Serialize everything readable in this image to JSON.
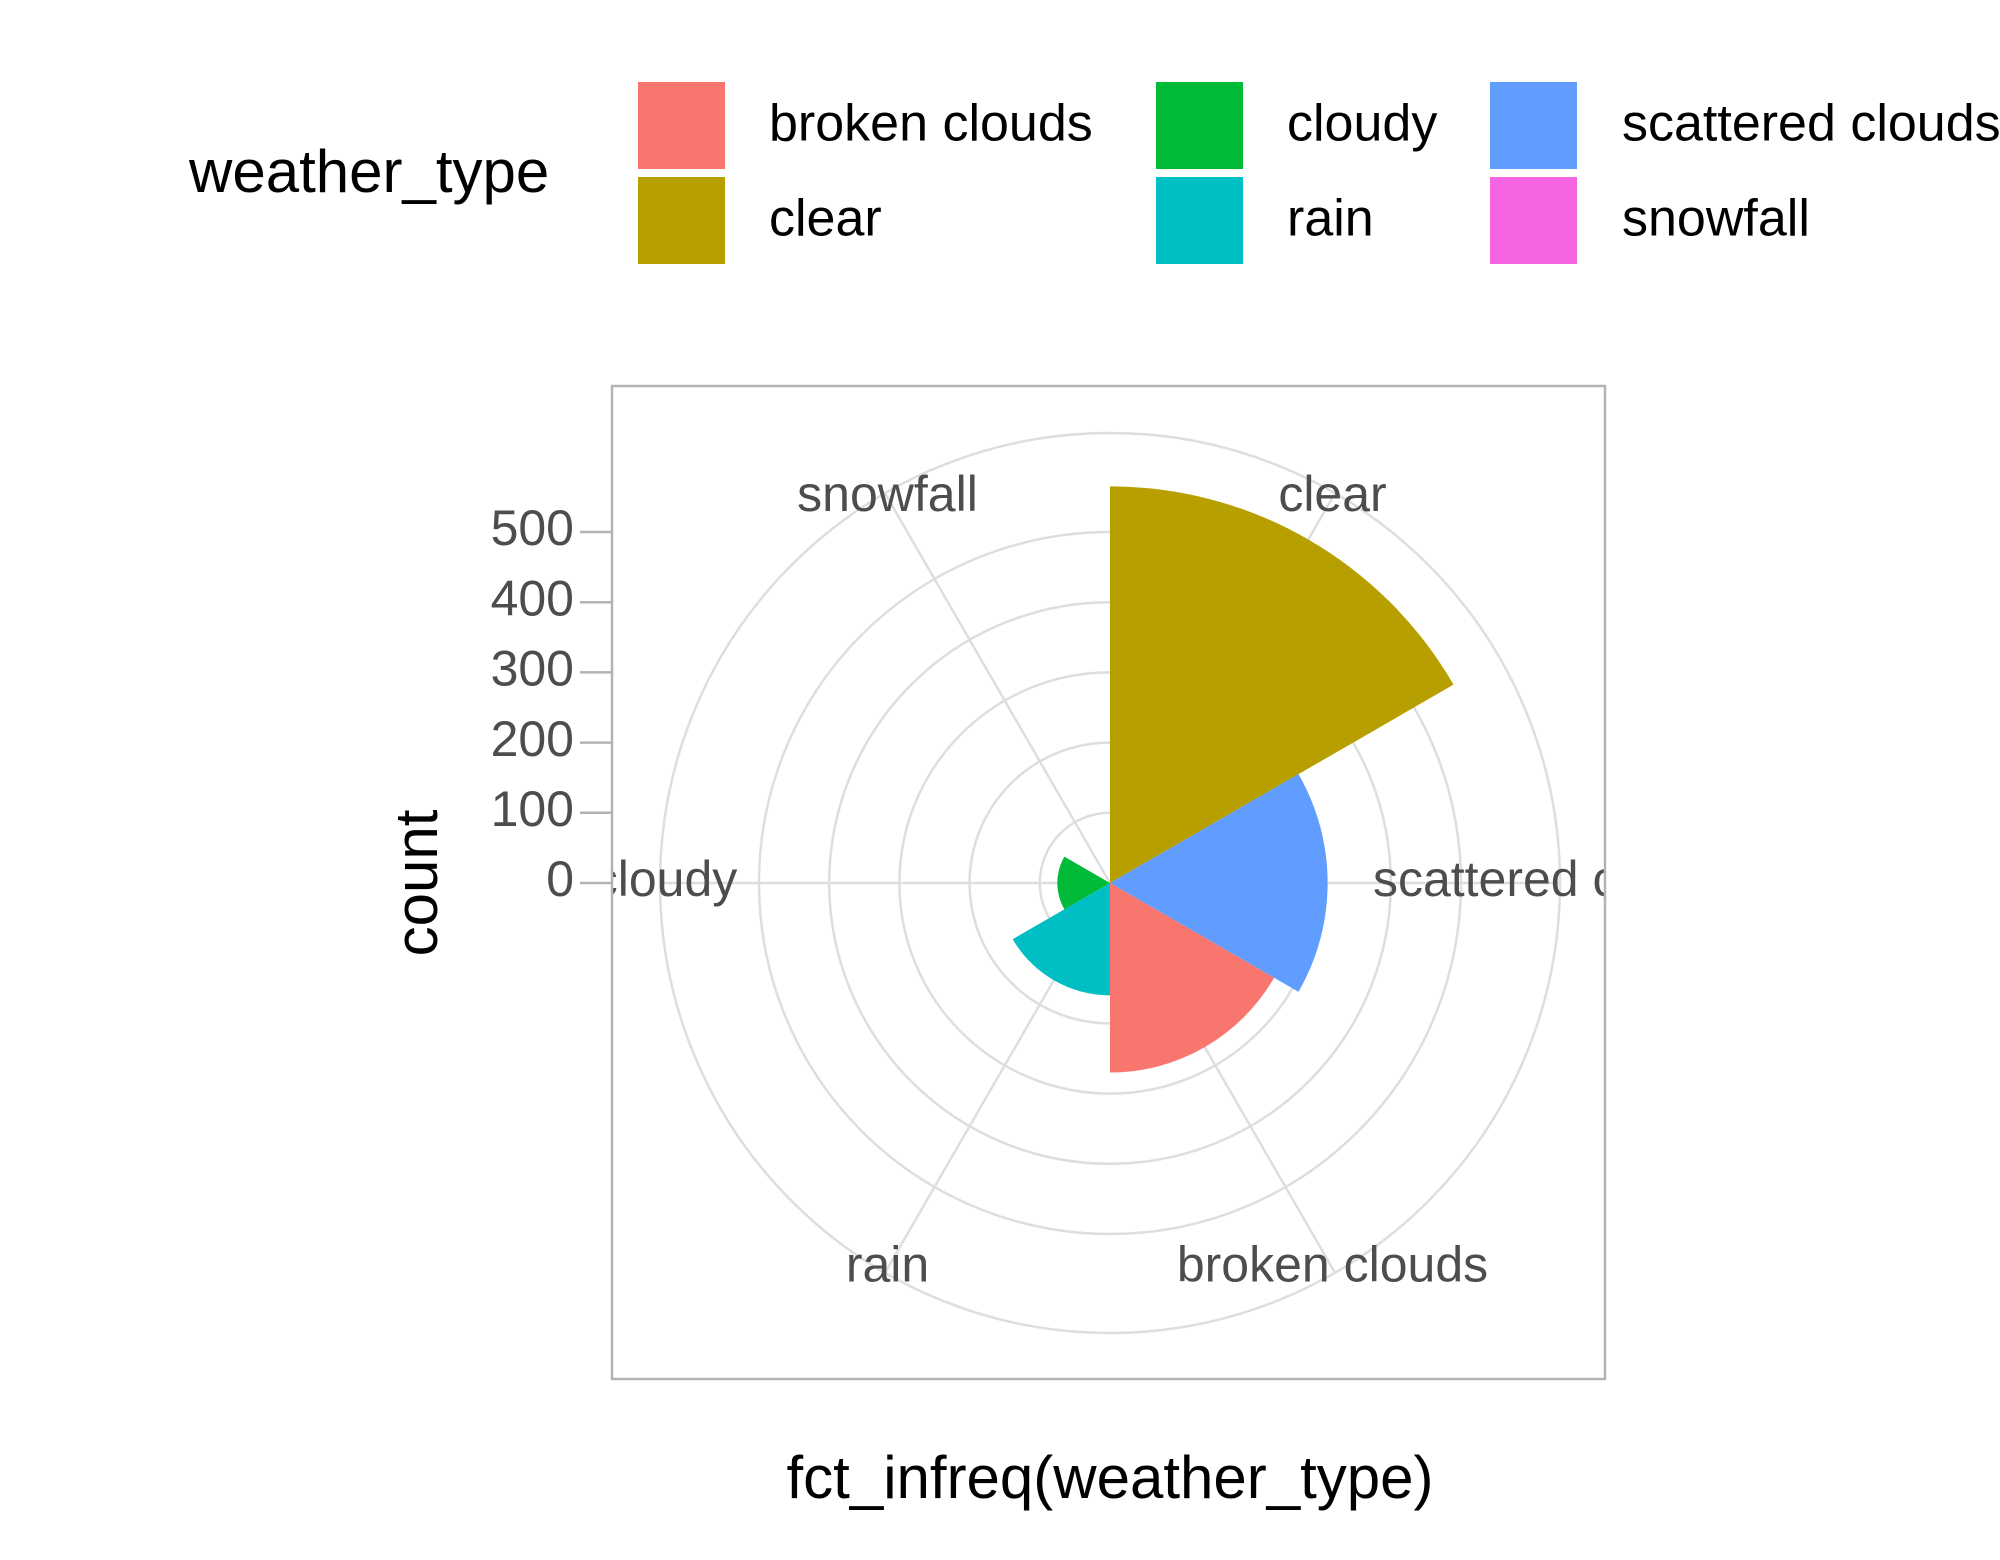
{
  "chart_data": {
    "type": "polar-bar",
    "legend_title": "weather_type",
    "x_label": "fct_infreq(weather_type)",
    "y_label": "count",
    "categories": [
      "clear",
      "scattered clouds",
      "broken clouds",
      "rain",
      "cloudy",
      "snowfall"
    ],
    "values": [
      565,
      310,
      270,
      160,
      75,
      0
    ],
    "colors": [
      "#B79F00",
      "#619CFF",
      "#F8766D",
      "#00BFC4",
      "#00BA38",
      "#F564E3"
    ],
    "ylim": [
      0,
      641
    ],
    "yticks": [
      0,
      100,
      200,
      300,
      400,
      500
    ],
    "grid": true
  }
}
